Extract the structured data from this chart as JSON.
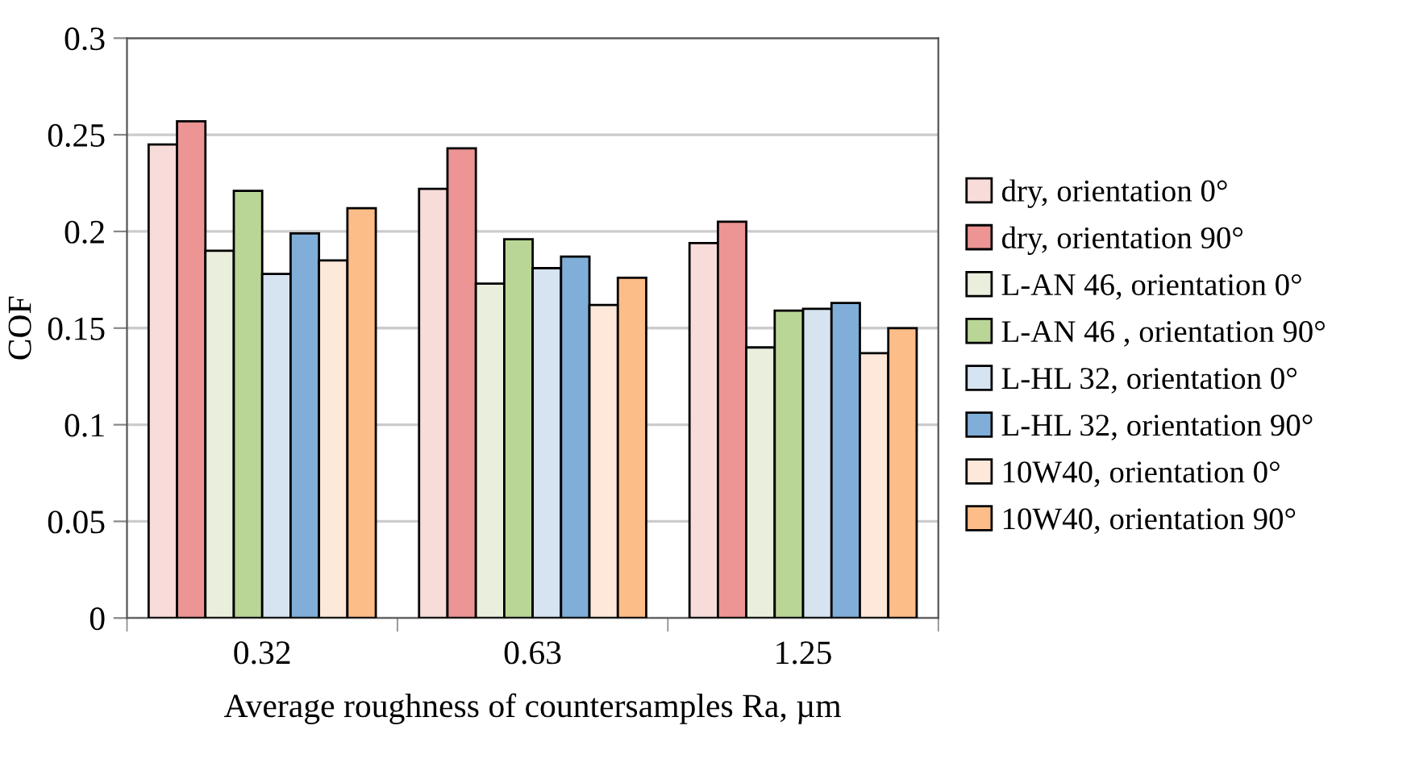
{
  "chart_data": {
    "type": "bar",
    "xlabel": "Average roughness of countersamples Ra, µm",
    "ylabel": "COF",
    "categories": [
      "0.32",
      "0.63",
      "1.25"
    ],
    "series": [
      {
        "name": "dry, orientation 0°",
        "color": "#f8dcda",
        "values": [
          0.245,
          0.222,
          0.194
        ]
      },
      {
        "name": "dry, orientation 90°",
        "color": "#ec9594",
        "values": [
          0.257,
          0.243,
          0.205
        ]
      },
      {
        "name": "L-AN 46, orientation 0°",
        "color": "#e9efdc",
        "values": [
          0.19,
          0.173,
          0.14
        ]
      },
      {
        "name": "L-AN 46 , orientation 90°",
        "color": "#bad697",
        "values": [
          0.221,
          0.196,
          0.159
        ]
      },
      {
        "name": "L-HL 32, orientation 0°",
        "color": "#d6e3f0",
        "values": [
          0.178,
          0.181,
          0.16
        ]
      },
      {
        "name": "L-HL 32, orientation 90°",
        "color": "#80aed8",
        "values": [
          0.199,
          0.187,
          0.163
        ]
      },
      {
        "name": "10W40, orientation 0°",
        "color": "#fde8da",
        "values": [
          0.185,
          0.162,
          0.137
        ]
      },
      {
        "name": "10W40, orientation 90°",
        "color": "#fcbd88",
        "values": [
          0.212,
          0.176,
          0.15
        ]
      }
    ],
    "ylim": [
      0,
      0.3
    ],
    "yticks": [
      {
        "value": 0,
        "label": "0"
      },
      {
        "value": 0.05,
        "label": "0.05"
      },
      {
        "value": 0.1,
        "label": "0.1"
      },
      {
        "value": 0.15,
        "label": "0.15"
      },
      {
        "value": 0.2,
        "label": "0.2"
      },
      {
        "value": 0.25,
        "label": "0.25"
      },
      {
        "value": 0.3,
        "label": "0.3"
      }
    ],
    "grid": "y",
    "legend": "right"
  }
}
